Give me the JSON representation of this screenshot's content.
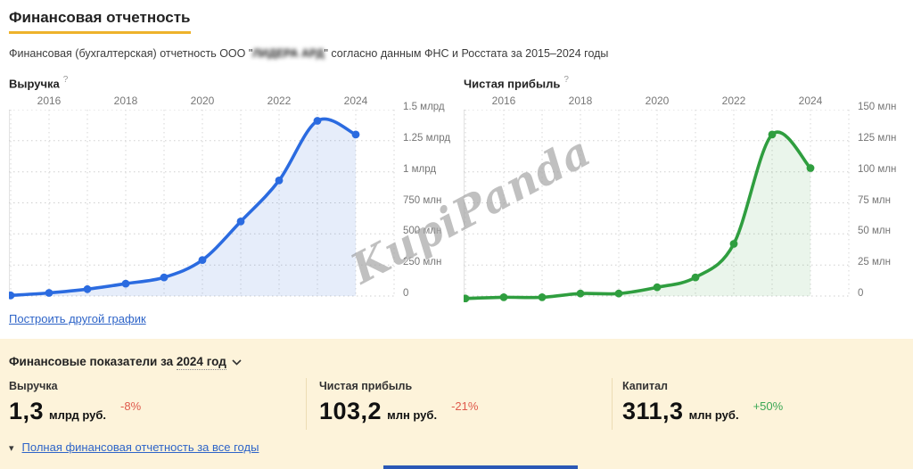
{
  "page": {
    "title": "Финансовая отчетность",
    "subtitle_prefix": "Финансовая (бухгалтерская) отчетность ООО \"",
    "company_name_redacted": "ЛИДЕРА АРД",
    "subtitle_suffix": "\" согласно данным ФНС и Росстата за 2015–2024 годы",
    "watermark": "KupiPanda",
    "accent_underline_color": "#eeb32b",
    "link_color": "#2e64c8",
    "panel_background": "#fdf3da"
  },
  "ui": {
    "help_glyph": "?"
  },
  "links": {
    "build_chart": "Построить другой график",
    "full_report": "Полная финансовая отчетность за все годы"
  },
  "chart_data": [
    {
      "type": "area",
      "title": "Выручка",
      "x": [
        2015,
        2016,
        2017,
        2018,
        2019,
        2020,
        2021,
        2022,
        2023,
        2024
      ],
      "values": [
        5,
        25,
        55,
        100,
        150,
        290,
        600,
        930,
        1410,
        1300
      ],
      "unit": "млн руб.",
      "ylim": [
        0,
        1500
      ],
      "y_ticks": [
        1500,
        1250,
        1000,
        750,
        500,
        250,
        0
      ],
      "y_tick_labels": [
        "1.5 млрд",
        "1.25 млрд",
        "1 млрд",
        "750 млн",
        "500 млн",
        "250 млн",
        "0"
      ],
      "x_tick_labels": [
        "2016",
        "2018",
        "2020",
        "2022",
        "2024"
      ],
      "x_axis_position": "top",
      "y_axis_position": "right",
      "grid": true,
      "line_color": "#2b6be0",
      "fill_color": "rgba(47,109,216,0.12)"
    },
    {
      "type": "area",
      "title": "Чистая прибыль",
      "x": [
        2015,
        2016,
        2017,
        2018,
        2019,
        2020,
        2021,
        2022,
        2023,
        2024
      ],
      "values": [
        -2,
        -1,
        -1,
        2,
        2,
        7,
        15,
        42,
        130,
        103
      ],
      "unit": "млн руб.",
      "ylim": [
        0,
        150
      ],
      "y_ticks": [
        150,
        125,
        100,
        75,
        50,
        25,
        0
      ],
      "y_tick_labels": [
        "150 млн",
        "125 млн",
        "100 млн",
        "75 млн",
        "50 млн",
        "25 млн",
        "0"
      ],
      "x_tick_labels": [
        "2016",
        "2018",
        "2020",
        "2022",
        "2024"
      ],
      "x_axis_position": "top",
      "y_axis_position": "right",
      "grid": true,
      "line_color": "#2f9e3f",
      "fill_color": "rgba(47,158,63,0.10)"
    }
  ],
  "indicators_panel": {
    "title_prefix": "Финансовые показатели за",
    "year_selector": "2024 год",
    "metrics": [
      {
        "label": "Выручка",
        "value": "1,3",
        "unit": "млрд руб.",
        "delta": "-8%",
        "delta_color": "#df5a4c"
      },
      {
        "label": "Чистая прибыль",
        "value": "103,2",
        "unit": "млн руб.",
        "delta": "-21%",
        "delta_color": "#df5a4c"
      },
      {
        "label": "Капитал",
        "value": "311,3",
        "unit": "млн руб.",
        "delta": "+50%",
        "delta_color": "#3ba755"
      }
    ]
  }
}
